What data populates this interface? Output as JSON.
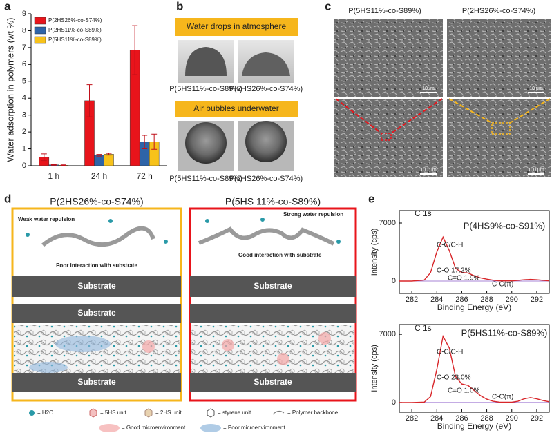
{
  "panel_labels": [
    "a",
    "b",
    "c",
    "d",
    "e"
  ],
  "chart_data": [
    {
      "type": "bar",
      "ylabel": "Water adsorption in polymers (wt %)",
      "categories": [
        "1 h",
        "24 h",
        "72 h"
      ],
      "series": [
        {
          "name": "P(2HS26%-co-S74%)",
          "color": "#e8141b",
          "values": [
            0.5,
            3.85,
            6.85
          ],
          "errors": [
            0.2,
            0.95,
            1.45
          ]
        },
        {
          "name": "P(2HS11%-co-S89%)",
          "color": "#2e64a8",
          "values": [
            0.05,
            0.62,
            1.4
          ],
          "errors": [
            0.02,
            0.05,
            0.4
          ]
        },
        {
          "name": "P(5HS11%-co-S89%)",
          "color": "#f7c21a",
          "values": [
            0.03,
            0.68,
            1.42
          ],
          "errors": [
            0.02,
            0.05,
            0.45
          ]
        }
      ],
      "ylim": [
        0,
        9
      ],
      "yticks": [
        0,
        1,
        2,
        3,
        4,
        5,
        6,
        7,
        8,
        9
      ],
      "legend": "upper left"
    },
    {
      "type": "line",
      "title": "P(4HS9%-co-S91%)",
      "element_label": "C 1s",
      "xlabel": "Binding Energy (eV)",
      "ylabel": "Intensity (cps)",
      "annotations": [
        "C-C/C-H",
        "C-O 17.2%",
        "C=O 1.9%",
        "C-C(π)"
      ],
      "x": [
        281,
        282,
        283,
        283.5,
        284,
        284.5,
        285,
        285.5,
        286,
        286.5,
        287,
        287.5,
        288,
        288.5,
        289,
        290,
        291,
        291.5,
        292,
        293
      ],
      "series": [
        {
          "name": "Envelope",
          "color": "#d8262a",
          "values": [
            0,
            0,
            130,
            1015,
            3500,
            5300,
            3680,
            1535,
            1040,
            970,
            630,
            380,
            230,
            110,
            30,
            20,
            160,
            200,
            160,
            30
          ]
        }
      ],
      "xlim": [
        281,
        293
      ],
      "xticks": [
        282,
        284,
        286,
        288,
        290,
        292
      ],
      "ylim": [
        -1500,
        8500
      ],
      "yticks": [
        0,
        7000
      ]
    },
    {
      "type": "line",
      "title": "P(5HS11%-co-S89%)",
      "element_label": "C 1s",
      "xlabel": "Binding Energy (eV)",
      "ylabel": "Intensity (cps)",
      "annotations": [
        "C-C/C-H",
        "C-O 23.0%",
        "C=O 1.0%",
        "C-C(π)"
      ],
      "x": [
        281,
        282,
        283,
        283.5,
        284,
        284.5,
        285,
        285.5,
        286,
        286.5,
        287,
        287.5,
        288,
        288.5,
        289,
        290,
        290.5,
        291,
        291.5,
        292,
        292.5,
        293
      ],
      "series": [
        {
          "name": "Envelope",
          "color": "#d8262a",
          "values": [
            0,
            0,
            40,
            600,
            3370,
            6800,
            5600,
            2660,
            1900,
            1750,
            1230,
            700,
            340,
            130,
            40,
            30,
            130,
            380,
            500,
            380,
            200,
            80
          ]
        }
      ],
      "xlim": [
        281,
        293
      ],
      "xticks": [
        282,
        284,
        286,
        288,
        290,
        292
      ],
      "ylim": [
        -1000,
        8000
      ],
      "yticks": [
        0,
        7000
      ]
    }
  ],
  "panel_b": {
    "banners": [
      "Water drops in atmosphere",
      "Air bubbles underwater"
    ],
    "captions": [
      "P(5HS11%-co-S89%)",
      "P(2HS26%-co-S74%)",
      "P(5HS11%-co-S89%)",
      "P(2HS26%-co-S74%)"
    ]
  },
  "panel_c": {
    "titles": [
      "P(5HS11%-co-S89%)",
      "P(2HS26%-co-S74%)"
    ],
    "scale_bars": [
      "10μm",
      "10 μm",
      "100 μm",
      "100 μm"
    ]
  },
  "panel_d": {
    "titles": [
      "P(2HS26%-co-S74%)",
      "P(5HS 11%-co-S89%)"
    ],
    "notes": [
      "Weak water repulsion",
      "Poor interaction with substrate",
      "Strong water repulsion",
      "Good interaction with substrate"
    ],
    "substrates": [
      "Substrate",
      "Substrate",
      "Substrate",
      "Substrate"
    ],
    "legend": [
      "= H2O",
      "= 5HS unit",
      "= 2HS unit",
      "= styrene unit",
      "= Polymer backbone",
      "= Good microenvironment",
      "= Poor microenvironment"
    ]
  }
}
